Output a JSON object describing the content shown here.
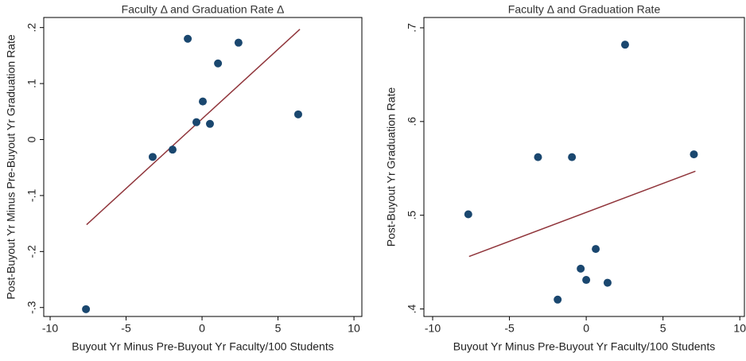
{
  "chart_data": [
    {
      "type": "scatter",
      "title": "Faculty Δ and Graduation Rate Δ",
      "x_label": "Buyout Yr Minus Pre-Buyout Yr Faculty/100 Students",
      "y_label": "Post-Buyout Yr Minus Pre-Buyout Yr Graduation Rate",
      "x": [
        -0.94,
        2.4,
        1.05,
        0.05,
        -0.37,
        0.52,
        6.33,
        -3.25,
        -1.94,
        -7.64
      ],
      "y": [
        0.18,
        0.173,
        0.136,
        0.068,
        0.031,
        0.028,
        0.045,
        -0.031,
        -0.018,
        -0.303
      ],
      "color": "#1a476f",
      "fit_line": {
        "x": [
          -7.6,
          6.44
        ],
        "y": [
          -0.152,
          0.197
        ],
        "color": "#90353b"
      },
      "xlim": [
        -10.42,
        10.52
      ],
      "ylim": [
        -0.316,
        0.218
      ],
      "xticks": [
        -10,
        -5,
        0,
        5,
        10
      ],
      "yticks": [
        {
          "value": -0.3,
          "label": "-.3"
        },
        {
          "value": -0.2,
          "label": "-.2"
        },
        {
          "value": -0.1,
          "label": "-.1"
        },
        0,
        {
          "value": 0.1,
          "label": ".1"
        },
        {
          "value": 0.2,
          "label": ".2"
        }
      ]
    },
    {
      "type": "scatter",
      "title": "Faculty Δ and Graduation Rate",
      "x_label": "Buyout Yr Minus Pre-Buyout Yr Faculty/100 Students",
      "y_label": "Post-Buyout Yr Graduation Rate",
      "x": [
        -7.68,
        -3.14,
        -0.93,
        2.53,
        7.01,
        0.62,
        -0.36,
        0,
        1.39,
        -1.86
      ],
      "y": [
        0.501,
        0.562,
        0.562,
        0.682,
        0.565,
        0.464,
        0.443,
        0.431,
        0.428,
        0.41
      ],
      "color": "#1a476f",
      "fit_line": {
        "x": [
          -7.63,
          7.11
        ],
        "y": [
          0.456,
          0.547
        ],
        "color": "#90353b"
      },
      "xlim": [
        -10.57,
        10.3
      ],
      "ylim": [
        0.392,
        0.711
      ],
      "xticks": [
        -10,
        -5,
        0,
        5,
        10
      ],
      "yticks": [
        {
          "value": 0.4,
          "label": ".4"
        },
        {
          "value": 0.5,
          "label": ".5"
        },
        {
          "value": 0.6,
          "label": ".6"
        },
        {
          "value": 0.7,
          "label": ".7"
        }
      ]
    }
  ]
}
